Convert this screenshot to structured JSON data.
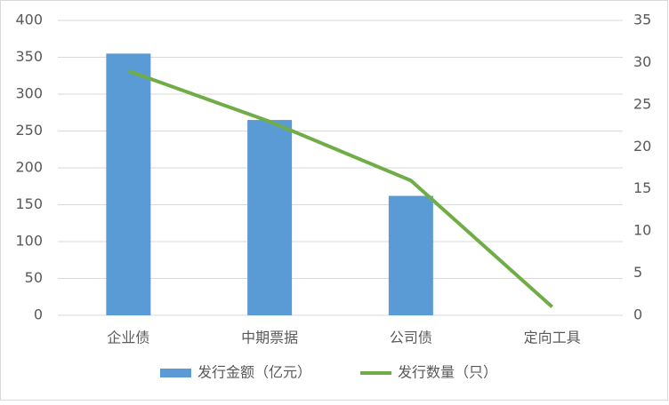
{
  "chart_data": {
    "type": "bar_line",
    "categories": [
      "企业债",
      "中期票据",
      "公司债",
      "定向工具"
    ],
    "series": [
      {
        "name": "发行金额（亿元）",
        "type": "bar",
        "color": "#5b9bd5",
        "values": [
          355,
          265,
          162,
          0
        ]
      },
      {
        "name": "发行数量（只）",
        "type": "line",
        "axis": "y2",
        "color": "#70ad47",
        "values": [
          29,
          23,
          16,
          1
        ]
      }
    ],
    "ylim": [
      0,
      400
    ],
    "yticks": [
      0,
      50,
      100,
      150,
      200,
      250,
      300,
      350,
      400
    ],
    "y2lim": [
      0,
      35
    ],
    "y2ticks": [
      0,
      5,
      10,
      15,
      20,
      25,
      30,
      35
    ],
    "grid": true,
    "legend": "bottom"
  }
}
